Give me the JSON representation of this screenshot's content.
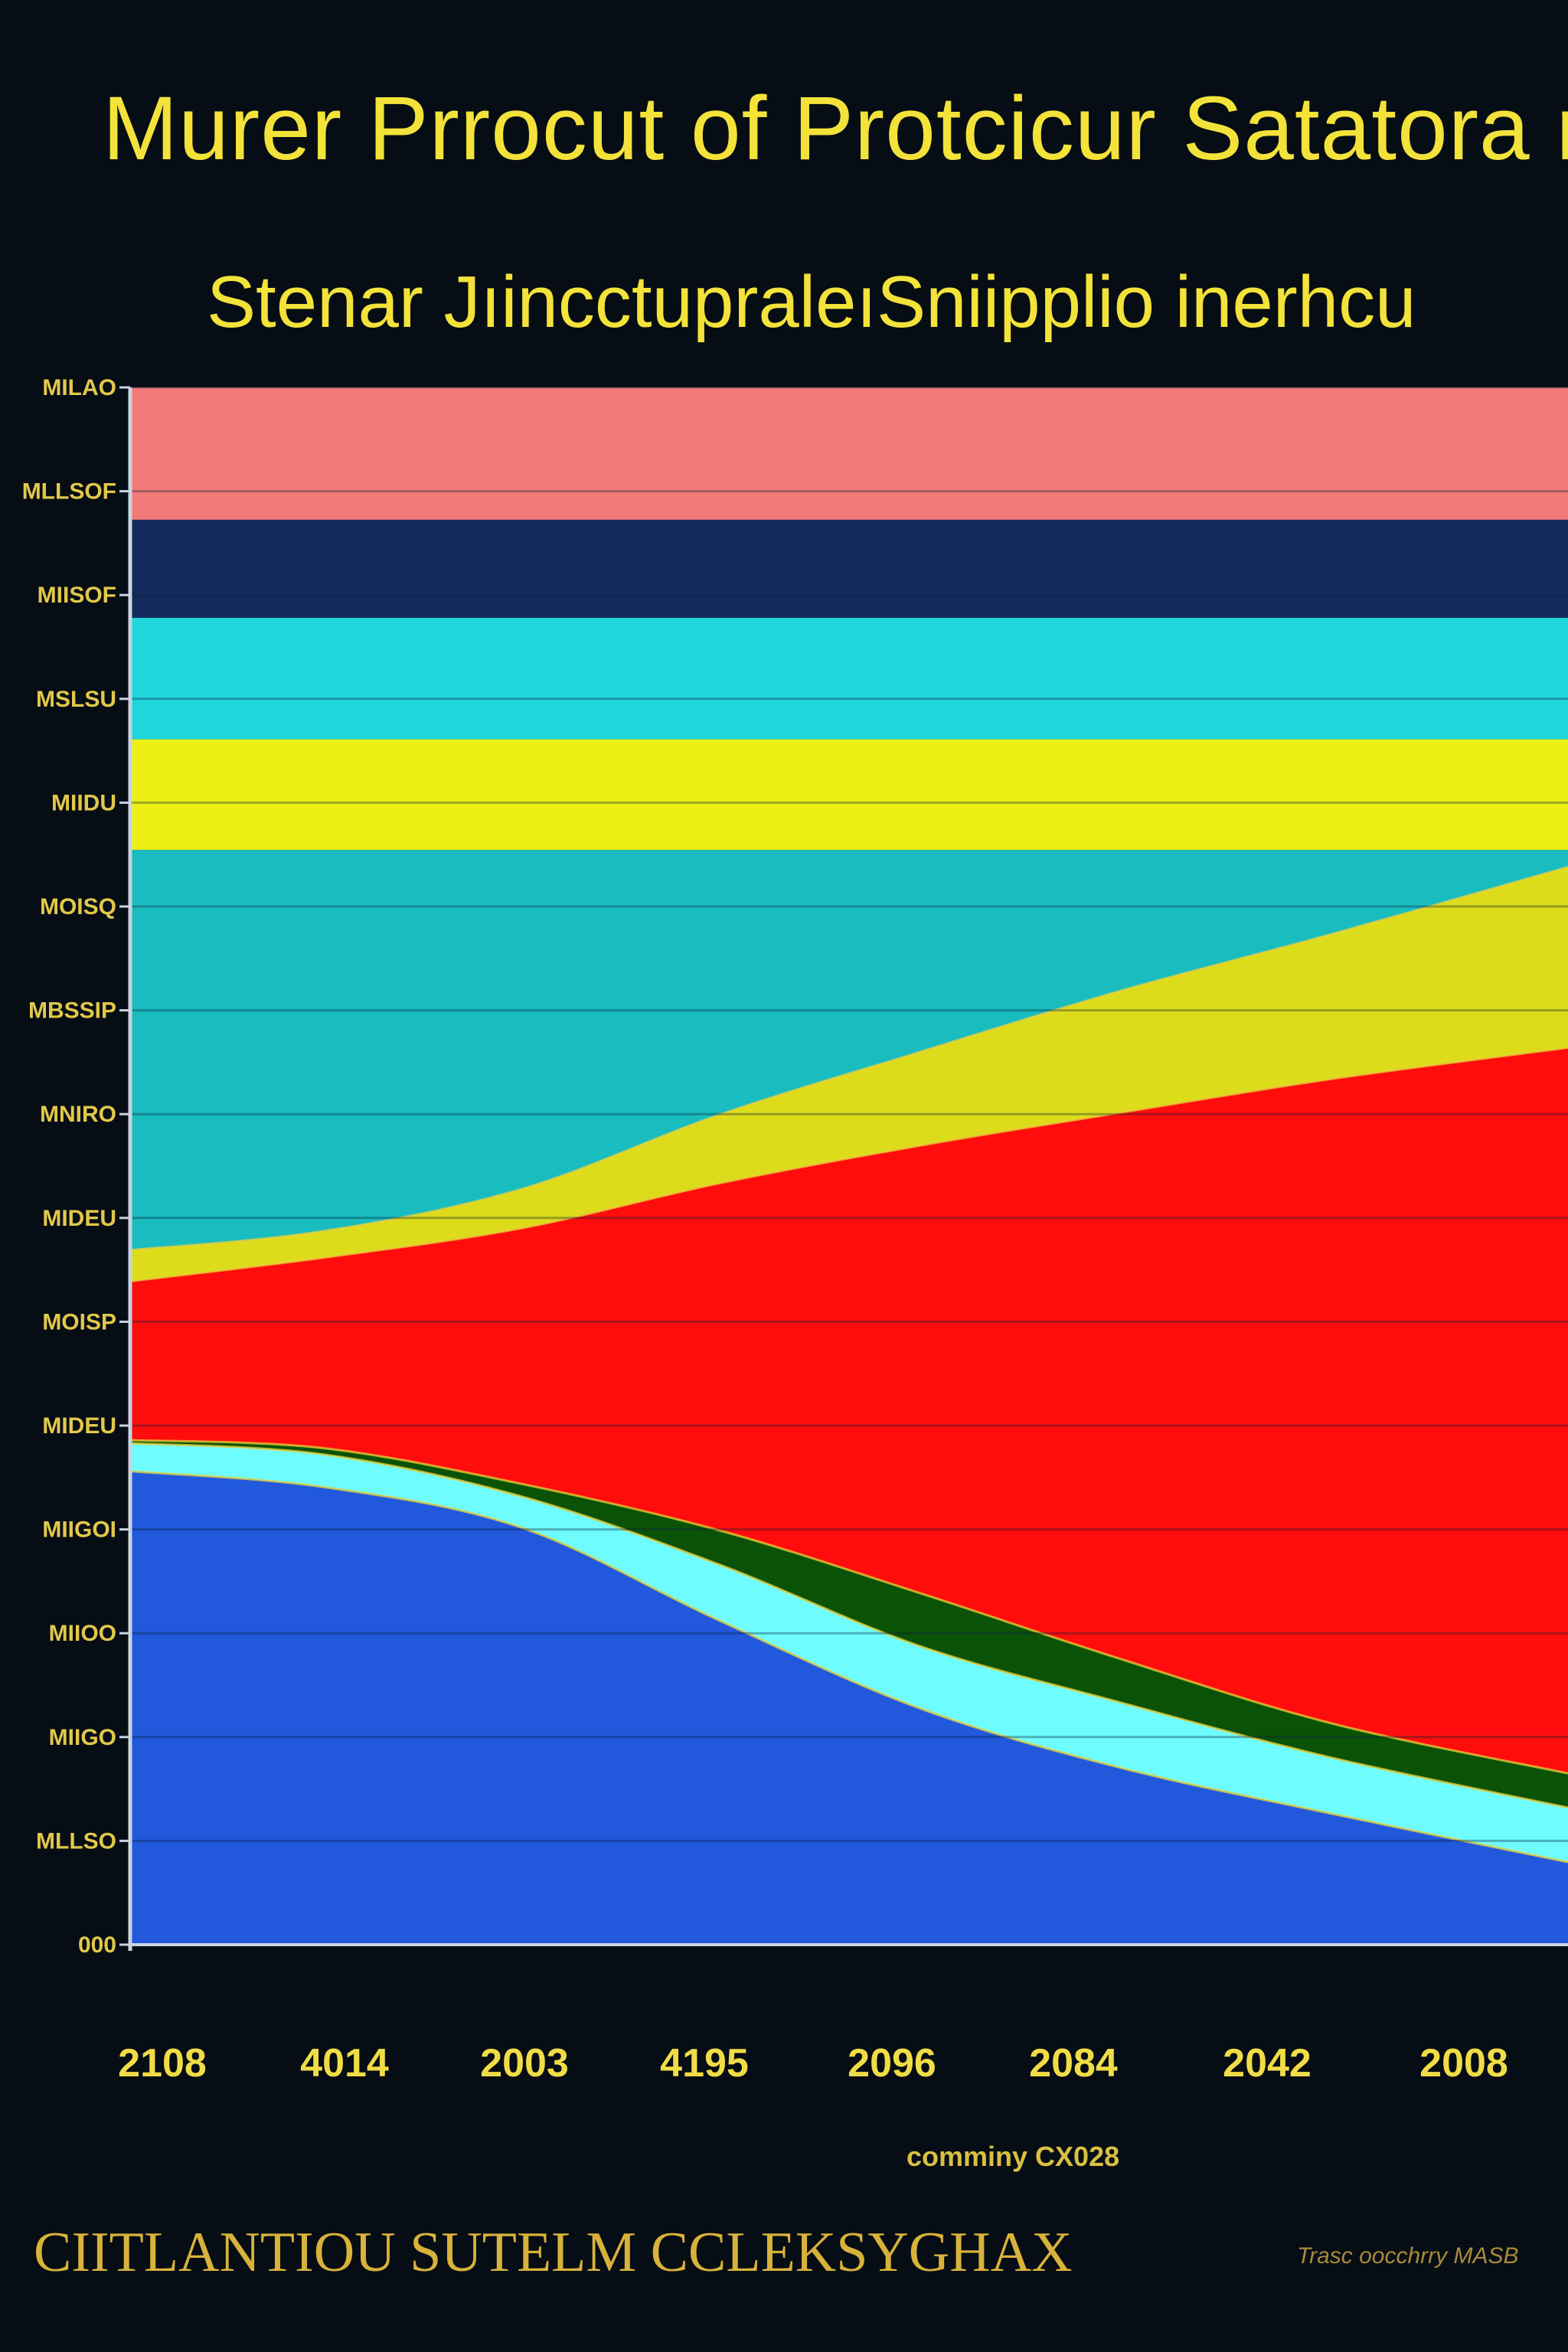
{
  "title": "Murer Prrocut of  Protcicur Satatora n",
  "subtitle": "Stenar JıincctupraleıSniipplio inerhcu",
  "xlabel": "comminy CX028",
  "footer": {
    "left": "CIITLANTIOU SUTELM CCLEKSYGHAX",
    "right": "Trasc oocchrry MASB"
  },
  "chart_data": {
    "type": "area",
    "title": "Murer Prrocut of  Protcicur Satatora n",
    "subtitle": "Stenar JıincctupraleıSniipplio inerhcu",
    "xlabel": "comminy CX028",
    "ylabel": "",
    "x_tick_labels": [
      "2108",
      "4014",
      "2003",
      "4195",
      "2096",
      "2084",
      "2042",
      "2008"
    ],
    "y_tick_labels": [
      "MILAO",
      "MLLSOF",
      "MIISOF",
      "MSLSU",
      "MIIDU",
      "MOISQ",
      "MBSSIP",
      "MNIRO",
      "MIDEU",
      "MOISP",
      "MIDEU",
      "MIIGOI",
      "MIIOO",
      "MIIGO",
      "MLLSO",
      "000"
    ],
    "ylim": [
      0,
      100
    ],
    "grid": true,
    "legend": "none",
    "bands": [
      {
        "color": "#f47a7a",
        "from": 100,
        "to": 91.5
      },
      {
        "color": "#122a5c",
        "from": 91.5,
        "to": 85.2
      },
      {
        "color": "#1fd6dc",
        "from": 85.2,
        "to": 77.4
      },
      {
        "color": "#ecf014",
        "from": 77.4,
        "to": 70.3
      },
      {
        "color": "#19bdc0",
        "from": 70.3,
        "to": 0
      }
    ],
    "x": [
      0,
      1,
      2,
      3,
      4,
      5,
      6,
      7
    ],
    "series": [
      {
        "color": "#2158dc",
        "values": [
          30.4,
          29.4,
          26.8,
          20.8,
          15.2,
          11.4,
          8.4,
          5.3
        ]
      },
      {
        "color": "#6ffcff",
        "values": [
          32.2,
          31.5,
          28.8,
          24.4,
          19.2,
          15.6,
          12.0,
          8.8
        ]
      },
      {
        "color": "#0a5206",
        "values": [
          32.4,
          31.9,
          29.6,
          26.6,
          22.6,
          18.4,
          14.2,
          11.0
        ]
      },
      {
        "color": "#ff0c0c",
        "values": [
          42.6,
          44.1,
          46.0,
          48.9,
          51.3,
          53.4,
          55.6,
          57.6
        ]
      },
      {
        "color": "#dddc1a",
        "values": [
          44.6,
          45.8,
          48.5,
          53.3,
          57.3,
          61.2,
          64.9,
          69.2
        ]
      }
    ]
  }
}
